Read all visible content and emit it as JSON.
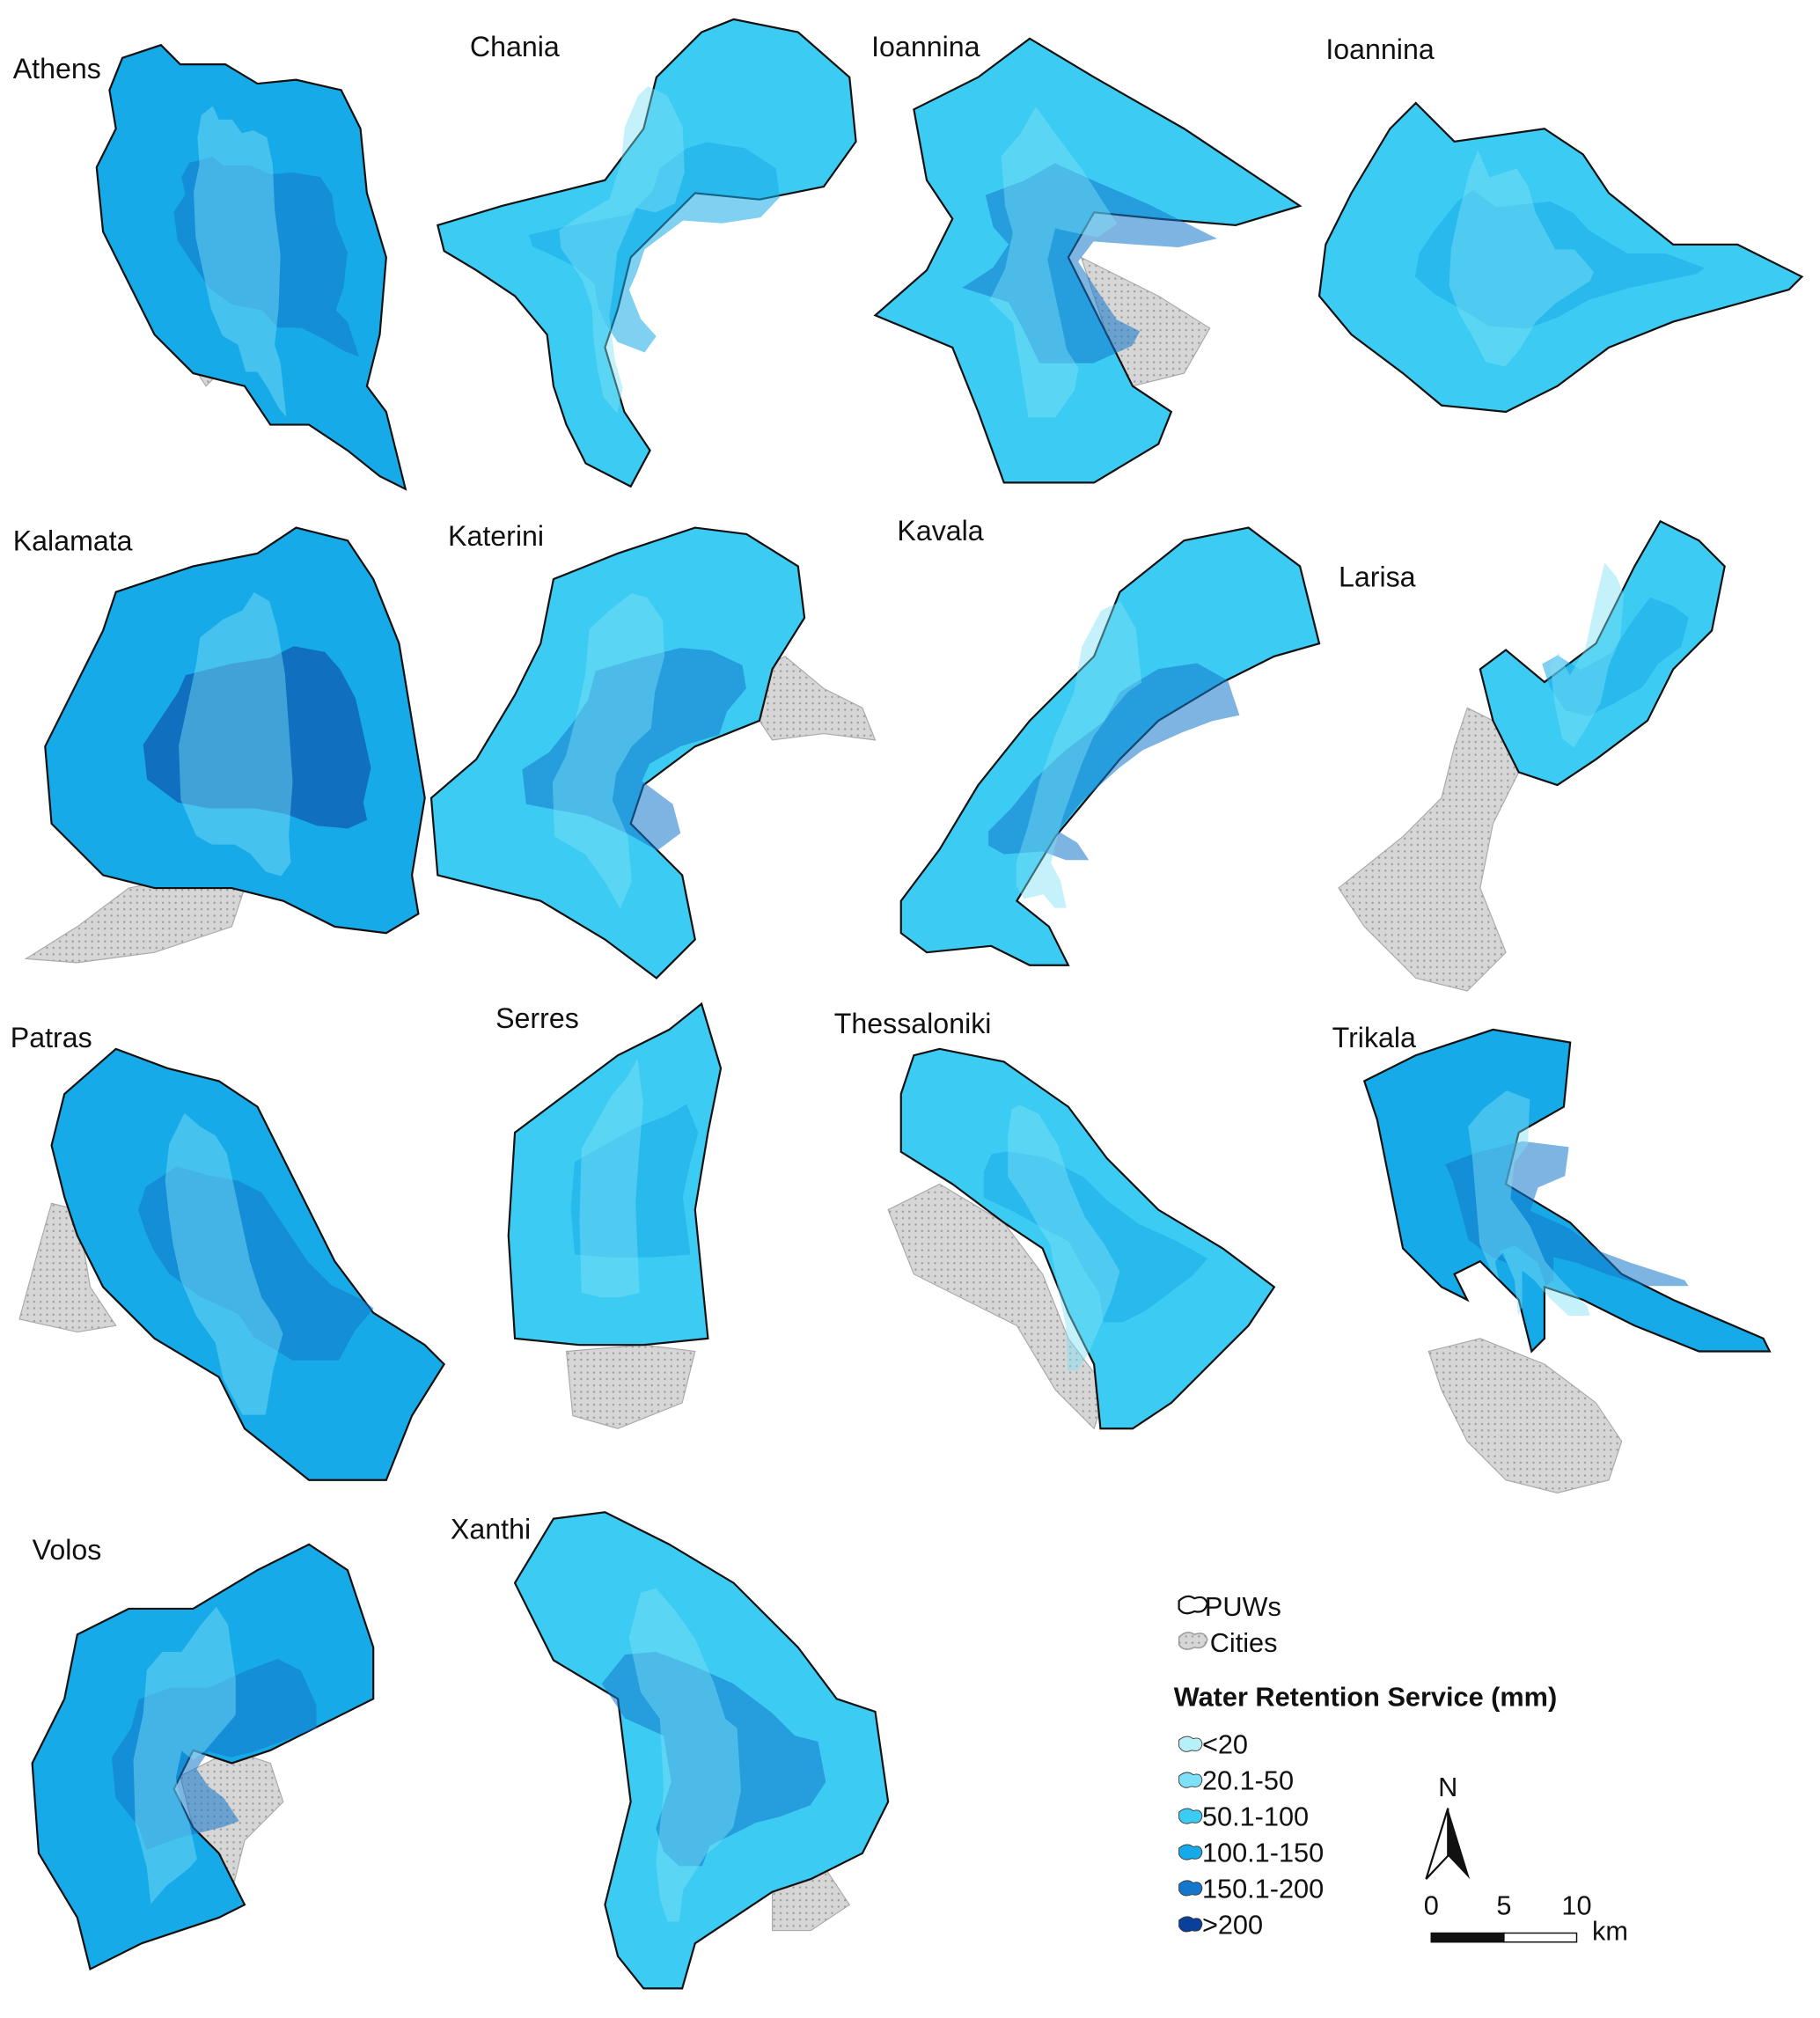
{
  "maps": [
    {
      "label": "Athens"
    },
    {
      "label": "Chania"
    },
    {
      "label": "Ioannina"
    },
    {
      "label": "Ioannina"
    },
    {
      "label": "Kalamata"
    },
    {
      "label": "Katerini"
    },
    {
      "label": "Kavala"
    },
    {
      "label": "Larisa"
    },
    {
      "label": "Patras"
    },
    {
      "label": "Serres"
    },
    {
      "label": "Thessaloniki"
    },
    {
      "label": "Trikala"
    },
    {
      "label": "Volos"
    },
    {
      "label": "Xanthi"
    }
  ],
  "legend": {
    "boundary": "PUWs",
    "cities": "Cities",
    "title": "Water Retention Service (mm)",
    "classes": [
      {
        "label": "<20",
        "color": "#b6f0f8"
      },
      {
        "label": "20.1-50",
        "color": "#7ee0f6"
      },
      {
        "label": "50.1-100",
        "color": "#3cccf3"
      },
      {
        "label": "100.1-150",
        "color": "#17aae8"
      },
      {
        "label": "150.1-200",
        "color": "#1477cb"
      },
      {
        "label": ">200",
        "color": "#0b3f9c"
      }
    ]
  },
  "north_arrow": "N",
  "scale_bar": {
    "ticks": [
      0,
      5,
      10
    ],
    "unit": "km"
  }
}
